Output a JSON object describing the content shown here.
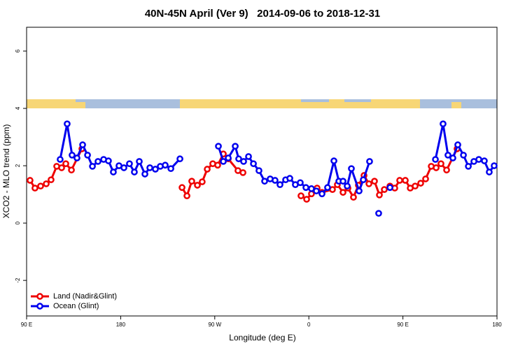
{
  "chart_data": {
    "type": "line",
    "title": "40N-45N April (Ver 9)   2014-09-06 to 2018-12-31",
    "xlabel": "Longitude (deg E)",
    "ylabel": "XCO2 - MLO trend (ppm)",
    "xlim": [
      90,
      540
    ],
    "ylim": [
      -3.24,
      6.83
    ],
    "xticks": [
      {
        "value": 90,
        "label": "90 E"
      },
      180,
      {
        "value": 270,
        "label": "90 W"
      },
      {
        "value": 360,
        "label": "0"
      },
      {
        "value": 450,
        "label": "90 E"
      },
      {
        "value": 540,
        "label": "180"
      }
    ],
    "yticks": [
      -2,
      0,
      2,
      4,
      6
    ],
    "legend": "bottom-left",
    "series": [
      {
        "name": "Land (Nadir&Glint)",
        "color": "#ee0000",
        "x": [
          93.3,
          98,
          103.4,
          108.8,
          113.4,
          118.8,
          123.5,
          127.5,
          132.9,
          142.9,
          190,
          238.7,
          243.4,
          248,
          253.4,
          258,
          262.8,
          268.1,
          272.8,
          278.2,
          282.9,
          292.2,
          297,
          325,
          352.5,
          357.9,
          362.5,
          367.9,
          372.6,
          382.6,
          387.3,
          392.7,
          397.4,
          402.7,
          407.4,
          412.8,
          417.5,
          422.8,
          427.5,
          432.2,
          437.6,
          442.2,
          446.9,
          452.3,
          457,
          461.7,
          467,
          471.7,
          477.1,
          481.8,
          486.4,
          491.8,
          501.8
        ],
        "values": [
          1.49,
          1.22,
          1.29,
          1.37,
          1.51,
          1.98,
          1.93,
          2.07,
          1.85,
          2.59,
          null,
          1.24,
          0.95,
          1.46,
          1.32,
          1.44,
          1.88,
          2.07,
          2.02,
          2.41,
          2.24,
          1.83,
          1.76,
          null,
          0.95,
          0.83,
          1.02,
          1.22,
          1.07,
          1.17,
          1.34,
          1.07,
          1.22,
          0.9,
          1.32,
          1.66,
          1.37,
          1.46,
          0.98,
          1.17,
          1.29,
          1.22,
          1.49,
          1.49,
          1.22,
          1.29,
          1.39,
          1.54,
          1.98,
          1.93,
          2.07,
          1.85,
          2.59
        ]
      },
      {
        "name": "Ocean (Glint)",
        "color": "#0000ee",
        "x": [
          122.1,
          128.8,
          133.5,
          138.2,
          143.6,
          148.3,
          153,
          158.3,
          163.7,
          168.3,
          173,
          178.4,
          183.1,
          188.4,
          193.1,
          197.8,
          203.2,
          207.9,
          213.2,
          217.9,
          222.6,
          228,
          236.7,
          255,
          273.5,
          278.2,
          282.9,
          289.6,
          292.9,
          297.6,
          302.3,
          307,
          312.3,
          317.7,
          323,
          327.7,
          332.4,
          337.8,
          341.8,
          347.1,
          351.8,
          357.2,
          362.5,
          367.2,
          372.6,
          377.9,
          384,
          388.7,
          392.7,
          396.7,
          400.7,
          408.1,
          412.1,
          418.1,
          423,
          426.8,
          432,
          437.6,
          460,
          481.1,
          488.4,
          493.1,
          497.8,
          502.5,
          507.9,
          512.6,
          517.9,
          522.6,
          527.9,
          532.6,
          537.3
        ],
        "values": [
          2.22,
          3.46,
          2.37,
          2.27,
          2.73,
          2.37,
          1.98,
          2.15,
          2.22,
          2.17,
          1.78,
          2.0,
          1.93,
          2.07,
          1.78,
          2.15,
          1.71,
          1.93,
          1.88,
          1.98,
          2.02,
          1.9,
          2.24,
          null,
          2.68,
          2.15,
          2.27,
          2.68,
          2.24,
          2.15,
          2.32,
          2.07,
          1.83,
          1.46,
          1.54,
          1.49,
          1.34,
          1.51,
          1.56,
          1.34,
          1.41,
          1.24,
          1.2,
          1.12,
          1.02,
          1.24,
          2.17,
          1.46,
          1.46,
          1.29,
          1.9,
          1.12,
          1.51,
          2.15,
          null,
          0.34,
          null,
          1.24,
          null,
          2.22,
          3.46,
          2.37,
          2.27,
          2.73,
          2.37,
          1.98,
          2.15,
          2.22,
          2.17,
          1.78,
          2.0
        ]
      }
    ]
  }
}
